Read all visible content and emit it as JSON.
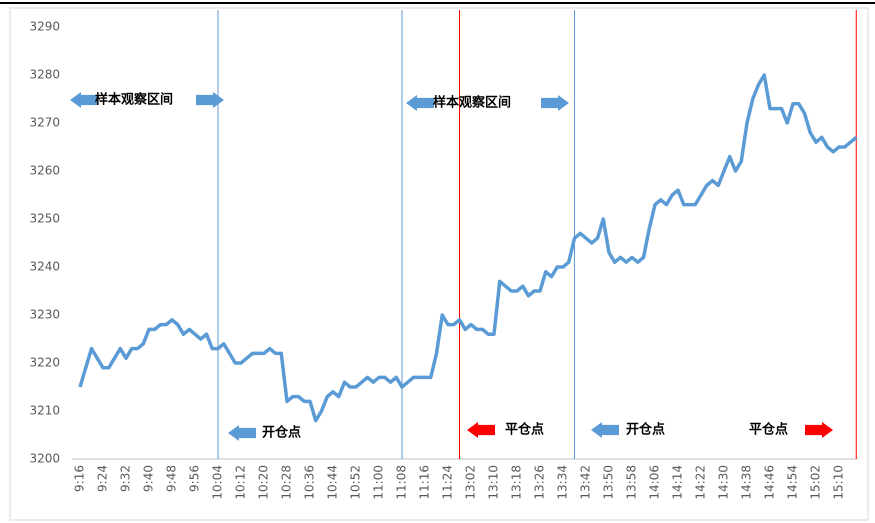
{
  "chart_data": {
    "type": "line",
    "color": "#5b9bd5",
    "categories": [
      "9:16",
      null,
      null,
      null,
      "9:24",
      null,
      null,
      null,
      "9:32",
      null,
      null,
      null,
      "9:40",
      null,
      null,
      null,
      "9:48",
      null,
      null,
      null,
      "9:56",
      null,
      null,
      null,
      "10:04",
      null,
      null,
      null,
      "10:12",
      null,
      null,
      null,
      "10:20",
      null,
      null,
      null,
      "10:28",
      null,
      null,
      null,
      "10:36",
      null,
      null,
      null,
      "10:44",
      null,
      null,
      null,
      "10:52",
      null,
      null,
      null,
      "11:00",
      null,
      null,
      null,
      "11:08",
      null,
      null,
      null,
      "11:16",
      null,
      null,
      null,
      "11:24",
      null,
      null,
      null,
      "13:02",
      null,
      null,
      null,
      "13:10",
      null,
      null,
      null,
      "13:18",
      null,
      null,
      null,
      "13:26",
      null,
      null,
      null,
      "13:34",
      null,
      null,
      null,
      "13:42",
      null,
      null,
      null,
      "13:50",
      null,
      null,
      null,
      "13:58",
      null,
      null,
      null,
      "14:06",
      null,
      null,
      null,
      "14:14",
      null,
      null,
      null,
      "14:22",
      null,
      null,
      null,
      "14:30",
      null,
      null,
      null,
      "14:38",
      null,
      null,
      null,
      "14:46",
      null,
      null,
      null,
      "14:54",
      null,
      null,
      null,
      "15:02",
      null,
      null,
      null,
      "15:10",
      null,
      null,
      null
    ],
    "values": [
      3215,
      3219,
      3223,
      3221,
      3219,
      3219,
      3221,
      3223,
      3221,
      3223,
      3223,
      3224,
      3227,
      3227,
      3228,
      3228,
      3229,
      3228,
      3226,
      3227,
      3226,
      3225,
      3226,
      3223,
      3223,
      3224,
      3222,
      3220,
      3220,
      3221,
      3222,
      3222,
      3222,
      3223,
      3222,
      3222,
      3212,
      3213,
      3213,
      3212,
      3212,
      3208,
      3210,
      3213,
      3214,
      3213,
      3216,
      3215,
      3215,
      3216,
      3217,
      3216,
      3217,
      3217,
      3216,
      3217,
      3215,
      3216,
      3217,
      3217,
      3217,
      3217,
      3222,
      3230,
      3228,
      3228,
      3229,
      3227,
      3228,
      3227,
      3227,
      3226,
      3226,
      3237,
      3236,
      3235,
      3235,
      3236,
      3234,
      3235,
      3235,
      3239,
      3238,
      3240,
      3240,
      3241,
      3246,
      3247,
      3246,
      3245,
      3246,
      3250,
      3243,
      3241,
      3242,
      3241,
      3242,
      3241,
      3242,
      3248,
      3253,
      3254,
      3253,
      3255,
      3256,
      3253,
      3253,
      3253,
      3255,
      3257,
      3258,
      3257,
      3260,
      3263,
      3260,
      3262,
      3270,
      3275,
      3278,
      3280,
      3273,
      3273,
      3273,
      3270,
      3274,
      3274,
      3272,
      3268,
      3266,
      3267,
      3265,
      3264,
      3265,
      3265,
      3266,
      3267
    ],
    "ylim": [
      3200,
      3290
    ],
    "yticks": [
      3200,
      3210,
      3220,
      3230,
      3240,
      3250,
      3260,
      3270,
      3280,
      3290
    ],
    "markers": [
      {
        "index": 24,
        "color": "#5b9bd5"
      },
      {
        "index": 56,
        "color": "#5b9bd5"
      },
      {
        "index": 66,
        "color": "#ff0000"
      },
      {
        "index": 86,
        "color": "#5b9bd5"
      },
      {
        "index": 135,
        "color": "#ff0000"
      }
    ],
    "annotations": [
      "样本观察区间",
      "样本观察区间",
      "开仓点",
      "平仓点",
      "开仓点",
      "平仓点"
    ]
  }
}
